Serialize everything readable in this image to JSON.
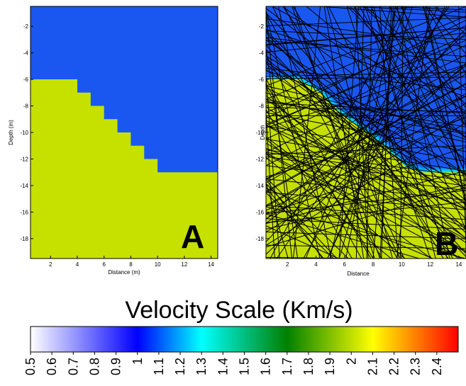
{
  "chart_data": [
    {
      "type": "heatmap",
      "panel_label": "A",
      "xlabel": "Distance (m)",
      "ylabel": "Depth (m)",
      "xlim": [
        0.5,
        14.5
      ],
      "ylim": [
        -19.5,
        -0.5
      ],
      "xticks": [
        2,
        4,
        6,
        8,
        10,
        12,
        14
      ],
      "yticks": [
        -2,
        -4,
        -6,
        -8,
        -10,
        -12,
        -14,
        -16,
        -18
      ],
      "upper_layer_velocity_km_s": 0.85,
      "lower_layer_velocity_km_s": 2.0,
      "interface": [
        [
          0.5,
          -6
        ],
        [
          4,
          -6
        ],
        [
          4,
          -7
        ],
        [
          5,
          -7
        ],
        [
          5,
          -8
        ],
        [
          6,
          -8
        ],
        [
          6,
          -9
        ],
        [
          7,
          -9
        ],
        [
          7,
          -10
        ],
        [
          8,
          -10
        ],
        [
          8,
          -11
        ],
        [
          9,
          -11
        ],
        [
          9,
          -12
        ],
        [
          10,
          -12
        ],
        [
          10,
          -13
        ],
        [
          14.5,
          -13
        ]
      ]
    },
    {
      "type": "heatmap",
      "panel_label": "B",
      "xlabel": "Distance",
      "ylabel": "Depth",
      "xlim": [
        0.5,
        14.5
      ],
      "ylim": [
        -19.5,
        -0.5
      ],
      "xticks": [
        2,
        4,
        6,
        8,
        10,
        12,
        14
      ],
      "yticks": [
        -2,
        -4,
        -6,
        -8,
        -10,
        -12,
        -14,
        -16,
        -18
      ],
      "upper_layer_velocity_km_s": 0.85,
      "lower_layer_velocity_km_s": 2.0,
      "overlay": "ray paths",
      "interface": [
        [
          0.5,
          -6
        ],
        [
          2.8,
          -6
        ],
        [
          4.3,
          -7
        ],
        [
          5.8,
          -8.6
        ],
        [
          7.3,
          -9.8
        ],
        [
          8.8,
          -11
        ],
        [
          10.3,
          -12.6
        ],
        [
          11.5,
          -13
        ],
        [
          14.5,
          -13
        ]
      ]
    }
  ],
  "colorbar": {
    "title": "Velocity Scale (Km/s)",
    "min": 0.5,
    "max": 2.5,
    "tick_labels": [
      "0.5",
      "0.6",
      "0.7",
      "0.8",
      "0.9",
      "1",
      "1.1",
      "1.2",
      "1.3",
      "1.4",
      "1.5",
      "1.6",
      "1.7",
      "1.8",
      "1.9",
      "2",
      "2.1",
      "2.2",
      "2.3",
      "2.4"
    ],
    "colors": [
      "#ffffff",
      "#0000ff",
      "#00ffff",
      "#008000",
      "#ffff00",
      "#ff0000"
    ]
  },
  "colors": {
    "upper_layer": "#1a57f0",
    "lower_layer": "#c6e000",
    "ray": "#000000"
  }
}
